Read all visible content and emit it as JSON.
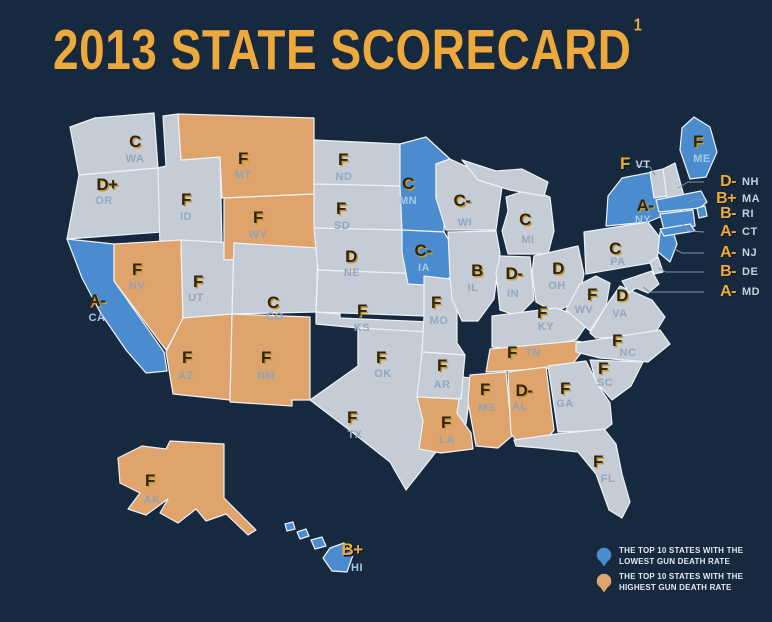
{
  "title": {
    "text": "2013 STATE SCORECARD",
    "footnote_marker": "1"
  },
  "colors": {
    "background": "#16293E",
    "state_gray": "#C5CCD5",
    "state_blue": "#4A8CCE",
    "state_orange": "#DFA36C",
    "border": "#EEF2F6",
    "gold": "#EFAA38",
    "grade_dark": "#2F250D",
    "grade_gold_edge": "#C8982F",
    "title_gold": "#EDA93C"
  },
  "map": {
    "states": [
      {
        "id": "WA",
        "abbr": "WA",
        "grade": "C",
        "category": "gray"
      },
      {
        "id": "OR",
        "abbr": "OR",
        "grade": "D+",
        "category": "gray"
      },
      {
        "id": "CA",
        "abbr": "CA",
        "grade": "A-",
        "category": "blue"
      },
      {
        "id": "ID",
        "abbr": "ID",
        "grade": "F",
        "category": "gray"
      },
      {
        "id": "NV",
        "abbr": "NV",
        "grade": "F",
        "category": "orange"
      },
      {
        "id": "UT",
        "abbr": "UT",
        "grade": "F",
        "category": "gray"
      },
      {
        "id": "AZ",
        "abbr": "AZ",
        "grade": "F",
        "category": "orange"
      },
      {
        "id": "MT",
        "abbr": "MT",
        "grade": "F",
        "category": "orange"
      },
      {
        "id": "WY",
        "abbr": "WY",
        "grade": "F",
        "category": "orange"
      },
      {
        "id": "CO",
        "abbr": "CO",
        "grade": "C",
        "category": "gray"
      },
      {
        "id": "NM",
        "abbr": "NM",
        "grade": "F",
        "category": "orange"
      },
      {
        "id": "ND",
        "abbr": "ND",
        "grade": "F",
        "category": "gray"
      },
      {
        "id": "SD",
        "abbr": "SD",
        "grade": "F",
        "category": "gray"
      },
      {
        "id": "NE",
        "abbr": "NE",
        "grade": "D",
        "category": "gray"
      },
      {
        "id": "KS",
        "abbr": "KS",
        "grade": "F",
        "category": "gray"
      },
      {
        "id": "OK",
        "abbr": "OK",
        "grade": "F",
        "category": "gray"
      },
      {
        "id": "TX",
        "abbr": "TX",
        "grade": "F",
        "category": "gray"
      },
      {
        "id": "MN",
        "abbr": "MN",
        "grade": "C",
        "category": "blue"
      },
      {
        "id": "IA",
        "abbr": "IA",
        "grade": "C-",
        "category": "blue"
      },
      {
        "id": "MO",
        "abbr": "MO",
        "grade": "F",
        "category": "gray"
      },
      {
        "id": "AR",
        "abbr": "AR",
        "grade": "F",
        "category": "gray"
      },
      {
        "id": "LA",
        "abbr": "LA",
        "grade": "F",
        "category": "orange"
      },
      {
        "id": "WI",
        "abbr": "WI",
        "grade": "C-",
        "category": "gray"
      },
      {
        "id": "IL",
        "abbr": "IL",
        "grade": "B",
        "category": "gray"
      },
      {
        "id": "MS",
        "abbr": "MS",
        "grade": "F",
        "category": "orange"
      },
      {
        "id": "MI",
        "abbr": "MI",
        "grade": "C",
        "category": "gray"
      },
      {
        "id": "IN",
        "abbr": "IN",
        "grade": "D-",
        "category": "gray"
      },
      {
        "id": "OH",
        "abbr": "OH",
        "grade": "D",
        "category": "gray"
      },
      {
        "id": "KY",
        "abbr": "KY",
        "grade": "F",
        "category": "gray"
      },
      {
        "id": "TN",
        "abbr": "TN",
        "grade": "F",
        "category": "orange"
      },
      {
        "id": "AL",
        "abbr": "AL",
        "grade": "D-",
        "category": "orange"
      },
      {
        "id": "GA",
        "abbr": "GA",
        "grade": "F",
        "category": "gray"
      },
      {
        "id": "FL",
        "abbr": "FL",
        "grade": "F",
        "category": "gray"
      },
      {
        "id": "WV",
        "abbr": "WV",
        "grade": "F",
        "category": "gray"
      },
      {
        "id": "VA",
        "abbr": "VA",
        "grade": "D",
        "category": "gray"
      },
      {
        "id": "NC",
        "abbr": "NC",
        "grade": "F",
        "category": "gray"
      },
      {
        "id": "SC",
        "abbr": "SC",
        "grade": "F",
        "category": "gray"
      },
      {
        "id": "PA",
        "abbr": "PA",
        "grade": "C",
        "category": "gray"
      },
      {
        "id": "NY",
        "abbr": "NY",
        "grade": "A-",
        "category": "blue"
      },
      {
        "id": "ME",
        "abbr": "ME",
        "grade": "F",
        "category": "blue"
      },
      {
        "id": "VT",
        "abbr": "VT",
        "grade": "F",
        "category": "gray",
        "label_style": "gold"
      },
      {
        "id": "AK",
        "abbr": "AK",
        "grade": "F",
        "category": "orange"
      },
      {
        "id": "HI",
        "abbr": "HI",
        "grade": "B+",
        "category": "blue",
        "label_style": "gold"
      }
    ],
    "shape_only": [
      {
        "id": "NH",
        "category": "gray"
      },
      {
        "id": "MA",
        "category": "blue"
      },
      {
        "id": "RI",
        "category": "blue"
      },
      {
        "id": "CT",
        "category": "blue"
      },
      {
        "id": "NJ",
        "category": "blue"
      },
      {
        "id": "DE",
        "category": "gray"
      },
      {
        "id": "MD",
        "category": "gray"
      }
    ]
  },
  "callouts": [
    {
      "grade": "D-",
      "state": "NH"
    },
    {
      "grade": "B+",
      "state": "MA"
    },
    {
      "grade": "B-",
      "state": "RI"
    },
    {
      "grade": "A-",
      "state": "CT"
    },
    {
      "grade": "A-",
      "state": "NJ"
    },
    {
      "grade": "B-",
      "state": "DE"
    },
    {
      "grade": "A-",
      "state": "MD"
    }
  ],
  "legend": [
    {
      "swatch": "blue",
      "line1": "THE TOP 10 STATES WITH THE",
      "line2": "LOWEST GUN DEATH RATE"
    },
    {
      "swatch": "orange",
      "line1": "THE TOP 10 STATES WITH THE",
      "line2": "HIGHEST GUN DEATH RATE"
    }
  ]
}
